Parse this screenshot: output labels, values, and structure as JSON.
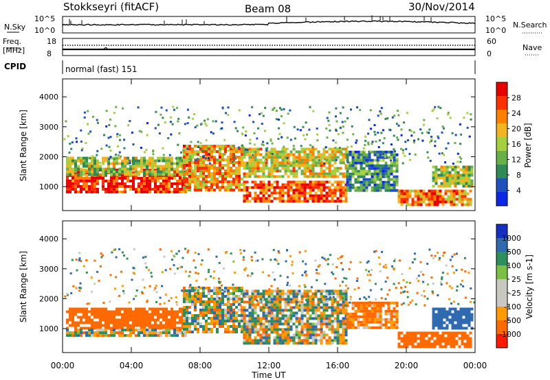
{
  "header": {
    "station": "Stokkseyri (fitACF)",
    "beam": "Beam 08",
    "date": "30/Nov/2014"
  },
  "noise_panel": {
    "left_label": "N.Sky",
    "right_label": "N.Search",
    "tick_top": "10^5",
    "tick_bottom": "10^0"
  },
  "freq_panel": {
    "left_label_1": "Freq.",
    "left_label_2": "[MHz]",
    "left_tick_top": "18",
    "left_tick_bottom": "8",
    "right_tick_top": "60",
    "right_tick_bottom": "0",
    "right_label": "Nave"
  },
  "cpid_panel": {
    "label": "CPID",
    "value": "normal (fast) 151"
  },
  "colors": {
    "power_scale": [
      "#0a28e6",
      "#1e50be",
      "#2f8a55",
      "#6ab04a",
      "#a6cf3f",
      "#f3b421",
      "#ff7f00",
      "#ff3000",
      "#e60000"
    ],
    "velocity_scale": [
      "#1530c0",
      "#2f6ab0",
      "#2f8f5a",
      "#7bc043",
      "#c8c8c0",
      "#c8c8c0",
      "#ff9a00",
      "#ff6a00",
      "#ff1a00"
    ]
  },
  "chart_data": [
    {
      "type": "heatmap",
      "name": "power",
      "ylabel": "Slant Range [km]",
      "ylim": [
        200,
        4600
      ],
      "xlim": [
        0,
        24
      ],
      "yticks": [
        "1000",
        "2000",
        "3000",
        "4000"
      ],
      "colorbar_label": "Power [dB]",
      "colorbar_ticks": [
        "4",
        "8",
        "12",
        "16",
        "20",
        "24",
        "28"
      ],
      "colorbar_range": [
        0,
        30
      ],
      "echo_regions": [
        {
          "t0": 0.2,
          "t1": 7.2,
          "r0": 800,
          "r1": 1600,
          "value": 26
        },
        {
          "t0": 0.2,
          "t1": 7.5,
          "r0": 1400,
          "r1": 2000,
          "value": 14
        },
        {
          "t0": 7.0,
          "t1": 10.5,
          "r0": 900,
          "r1": 2400,
          "value": 20
        },
        {
          "t0": 10.5,
          "t1": 16.5,
          "r0": 500,
          "r1": 1200,
          "value": 24
        },
        {
          "t0": 10.5,
          "t1": 16.5,
          "r0": 1300,
          "r1": 2300,
          "value": 17
        },
        {
          "t0": 16.5,
          "t1": 19.5,
          "r0": 900,
          "r1": 2200,
          "value": 9
        },
        {
          "t0": 19.5,
          "t1": 23.8,
          "r0": 400,
          "r1": 900,
          "value": 22
        },
        {
          "t0": 21.5,
          "t1": 23.9,
          "r0": 1000,
          "r1": 1700,
          "value": 14
        }
      ]
    },
    {
      "type": "heatmap",
      "name": "velocity",
      "ylabel": "Slant Range [km]",
      "ylim": [
        200,
        4600
      ],
      "xlim": [
        0,
        24
      ],
      "yticks": [
        "1000",
        "2000",
        "3000",
        "4000"
      ],
      "xlabel": "Time UT",
      "xticks": [
        "00:00",
        "04:00",
        "08:00",
        "12:00",
        "16:00",
        "20:00",
        "00:00"
      ],
      "colorbar_label": "Velocity [m s-1]",
      "colorbar_ticks": [
        "1000",
        "500",
        "100",
        "25",
        "-25",
        "-100",
        "-500",
        "-1000"
      ],
      "echo_regions": [
        {
          "t0": 0.2,
          "t1": 7.2,
          "r0": 1000,
          "r1": 1700,
          "value": -300
        },
        {
          "t0": 0.2,
          "t1": 7.2,
          "r0": 800,
          "r1": 1000,
          "value": 0
        },
        {
          "t0": 7.0,
          "t1": 10.5,
          "r0": 900,
          "r1": 2400,
          "value": 0
        },
        {
          "t0": 10.5,
          "t1": 16.5,
          "r0": 500,
          "r1": 2300,
          "value": 0
        },
        {
          "t0": 16.5,
          "t1": 19.5,
          "r0": 1000,
          "r1": 1900,
          "value": -150
        },
        {
          "t0": 19.5,
          "t1": 23.8,
          "r0": 400,
          "r1": 900,
          "value": -250
        },
        {
          "t0": 21.5,
          "t1": 23.9,
          "r0": 1000,
          "r1": 1700,
          "value": 300
        }
      ]
    }
  ]
}
